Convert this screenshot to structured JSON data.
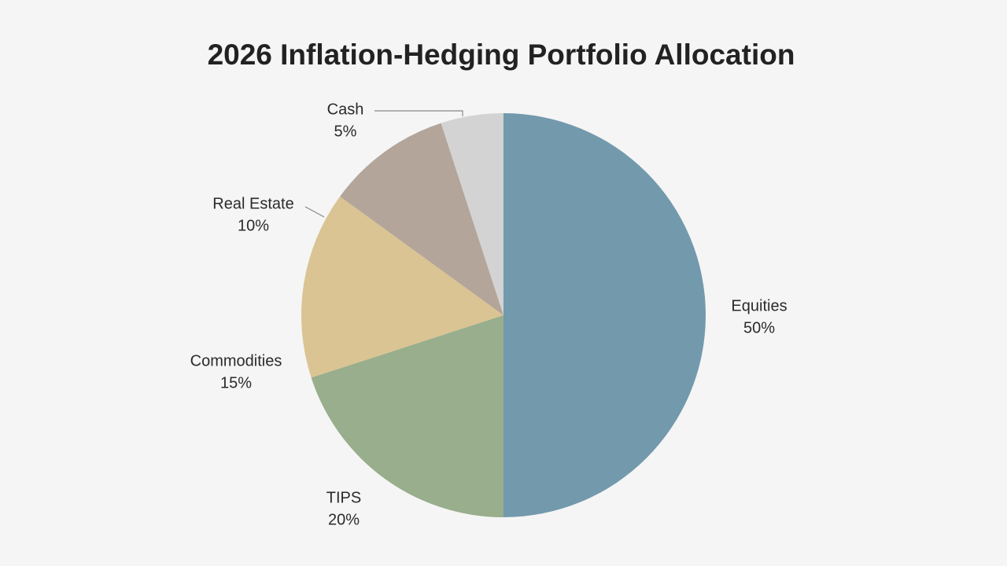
{
  "chart_data": {
    "type": "pie",
    "title": "2026 Inflation-Hedging Portfolio Allocation",
    "categories": [
      "Equities",
      "TIPS",
      "Commodities",
      "Real Estate",
      "Cash"
    ],
    "values": [
      50,
      20,
      15,
      10,
      5
    ],
    "value_labels": [
      "50%",
      "20%",
      "15%",
      "10%",
      "5%"
    ],
    "colors": [
      "#7399ad",
      "#98ae8c",
      "#dac493",
      "#b3a599",
      "#d3d3d3"
    ]
  }
}
